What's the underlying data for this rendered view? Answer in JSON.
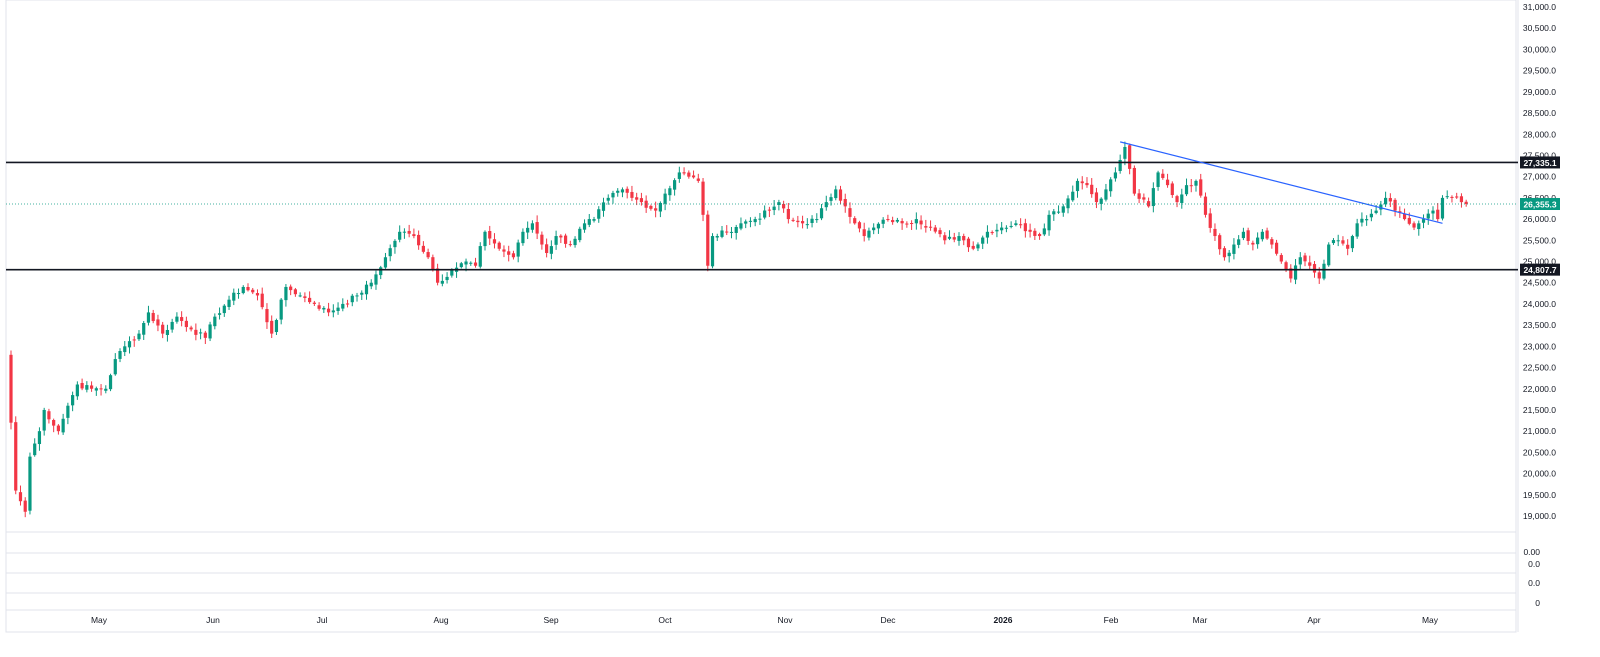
{
  "chart_data": {
    "type": "candlestick",
    "price_axis": {
      "ylim": [
        18500,
        31000
      ],
      "ticks": [
        31000,
        30500,
        30000,
        29500,
        29000,
        28500,
        28000,
        27500,
        27000,
        26500,
        26000,
        25500,
        25000,
        24500,
        24000,
        23500,
        23000,
        22500,
        22000,
        21500,
        21000,
        20500,
        20000,
        19500,
        19000
      ],
      "tick_labels": [
        "31,000.0",
        "30,500.0",
        "30,000.0",
        "29,500.0",
        "29,000.0",
        "28,500.0",
        "28,000.0",
        "27,500.0",
        "27,000.0",
        "26,500.0",
        "26,000.0",
        "25,500.0",
        "25,000.0",
        "24,500.0",
        "24,000.0",
        "23,500.0",
        "23,000.0",
        "22,500.0",
        "22,000.0",
        "21,500.0",
        "21,000.0",
        "20,500.0",
        "20,000.0",
        "19,500.0",
        "19,000.0"
      ]
    },
    "time_axis": {
      "labels": [
        "May",
        "Jun",
        "Jul",
        "Aug",
        "Sep",
        "Oct",
        "Nov",
        "Dec",
        "2026",
        "Feb",
        "Mar",
        "Apr",
        "May"
      ],
      "bold": [
        false,
        false,
        false,
        false,
        false,
        false,
        false,
        false,
        true,
        false,
        false,
        false,
        false
      ]
    },
    "horizontal_lines": [
      {
        "price": 27335.1,
        "label": "27,335.1",
        "color": "#131722"
      },
      {
        "price": 24807.7,
        "label": "24,807.7",
        "color": "#131722"
      }
    ],
    "trendline": {
      "from": {
        "i": 234,
        "price": 27820
      },
      "to": {
        "i": 302,
        "price": 25900
      },
      "color": "#2962ff"
    },
    "last_price": {
      "price": 26355.3,
      "label": "26,355.3",
      "color": "#089981"
    },
    "colors": {
      "up": "#089981",
      "down": "#f23645"
    },
    "sub_panes": [
      {
        "labels": [
          "0.00"
        ]
      },
      {
        "labels": [
          "0.0"
        ]
      },
      {
        "labels": [
          "0.0"
        ]
      },
      {
        "labels": [
          "0"
        ]
      }
    ],
    "anchors": [
      {
        "i": 0,
        "c": 21200
      },
      {
        "i": 1,
        "c": 19600
      },
      {
        "i": 3,
        "c": 19100
      },
      {
        "i": 4,
        "c": 20400
      },
      {
        "i": 6,
        "c": 21000
      },
      {
        "i": 7,
        "c": 21500
      },
      {
        "i": 10,
        "c": 21000
      },
      {
        "i": 12,
        "c": 21600
      },
      {
        "i": 14,
        "c": 22100
      },
      {
        "i": 17,
        "c": 22000
      },
      {
        "i": 20,
        "c": 22000
      },
      {
        "i": 22,
        "c": 22700
      },
      {
        "i": 24,
        "c": 23000
      },
      {
        "i": 27,
        "c": 23300
      },
      {
        "i": 29,
        "c": 23800
      },
      {
        "i": 32,
        "c": 23300
      },
      {
        "i": 35,
        "c": 23700
      },
      {
        "i": 38,
        "c": 23400
      },
      {
        "i": 41,
        "c": 23200
      },
      {
        "i": 43,
        "c": 23700
      },
      {
        "i": 46,
        "c": 24100
      },
      {
        "i": 49,
        "c": 24400
      },
      {
        "i": 52,
        "c": 24200
      },
      {
        "i": 55,
        "c": 23300
      },
      {
        "i": 58,
        "c": 24400
      },
      {
        "i": 61,
        "c": 24200
      },
      {
        "i": 64,
        "c": 24000
      },
      {
        "i": 67,
        "c": 23800
      },
      {
        "i": 70,
        "c": 24000
      },
      {
        "i": 73,
        "c": 24200
      },
      {
        "i": 76,
        "c": 24500
      },
      {
        "i": 79,
        "c": 25100
      },
      {
        "i": 82,
        "c": 25700
      },
      {
        "i": 85,
        "c": 25600
      },
      {
        "i": 88,
        "c": 25100
      },
      {
        "i": 90,
        "c": 24500
      },
      {
        "i": 93,
        "c": 24800
      },
      {
        "i": 96,
        "c": 25000
      },
      {
        "i": 98,
        "c": 24900
      },
      {
        "i": 100,
        "c": 25700
      },
      {
        "i": 103,
        "c": 25300
      },
      {
        "i": 106,
        "c": 25100
      },
      {
        "i": 108,
        "c": 25700
      },
      {
        "i": 110,
        "c": 25900
      },
      {
        "i": 113,
        "c": 25200
      },
      {
        "i": 115,
        "c": 25600
      },
      {
        "i": 118,
        "c": 25400
      },
      {
        "i": 121,
        "c": 25900
      },
      {
        "i": 123,
        "c": 26000
      },
      {
        "i": 126,
        "c": 26500
      },
      {
        "i": 129,
        "c": 26700
      },
      {
        "i": 131,
        "c": 26500
      },
      {
        "i": 133,
        "c": 26400
      },
      {
        "i": 136,
        "c": 26200
      },
      {
        "i": 138,
        "c": 26600
      },
      {
        "i": 141,
        "c": 27100
      },
      {
        "i": 143,
        "c": 27000
      },
      {
        "i": 145,
        "c": 26900
      },
      {
        "i": 146,
        "c": 26100
      },
      {
        "i": 147,
        "c": 24900
      },
      {
        "i": 148,
        "c": 25600
      },
      {
        "i": 151,
        "c": 25700
      },
      {
        "i": 154,
        "c": 25900
      },
      {
        "i": 157,
        "c": 26000
      },
      {
        "i": 160,
        "c": 26200
      },
      {
        "i": 162,
        "c": 26400
      },
      {
        "i": 164,
        "c": 26000
      },
      {
        "i": 167,
        "c": 25900
      },
      {
        "i": 170,
        "c": 26000
      },
      {
        "i": 172,
        "c": 26400
      },
      {
        "i": 174,
        "c": 26700
      },
      {
        "i": 176,
        "c": 26300
      },
      {
        "i": 178,
        "c": 25900
      },
      {
        "i": 180,
        "c": 25600
      },
      {
        "i": 182,
        "c": 25800
      },
      {
        "i": 185,
        "c": 26000
      },
      {
        "i": 188,
        "c": 25900
      },
      {
        "i": 191,
        "c": 26000
      },
      {
        "i": 194,
        "c": 25800
      },
      {
        "i": 197,
        "c": 25500
      },
      {
        "i": 200,
        "c": 25600
      },
      {
        "i": 203,
        "c": 25300
      },
      {
        "i": 206,
        "c": 25700
      },
      {
        "i": 209,
        "c": 25800
      },
      {
        "i": 212,
        "c": 25900
      },
      {
        "i": 215,
        "c": 25700
      },
      {
        "i": 217,
        "c": 25600
      },
      {
        "i": 219,
        "c": 26100
      },
      {
        "i": 222,
        "c": 26300
      },
      {
        "i": 225,
        "c": 26900
      },
      {
        "i": 227,
        "c": 26800
      },
      {
        "i": 229,
        "c": 26400
      },
      {
        "i": 231,
        "c": 26700
      },
      {
        "i": 233,
        "c": 27100
      },
      {
        "i": 235,
        "c": 27700
      },
      {
        "i": 237,
        "c": 26600
      },
      {
        "i": 240,
        "c": 26300
      },
      {
        "i": 242,
        "c": 27100
      },
      {
        "i": 244,
        "c": 26800
      },
      {
        "i": 246,
        "c": 26400
      },
      {
        "i": 248,
        "c": 26800
      },
      {
        "i": 250,
        "c": 26900
      },
      {
        "i": 252,
        "c": 26100
      },
      {
        "i": 254,
        "c": 25600
      },
      {
        "i": 256,
        "c": 25100
      },
      {
        "i": 258,
        "c": 25400
      },
      {
        "i": 260,
        "c": 25700
      },
      {
        "i": 262,
        "c": 25400
      },
      {
        "i": 264,
        "c": 25700
      },
      {
        "i": 266,
        "c": 25400
      },
      {
        "i": 268,
        "c": 25000
      },
      {
        "i": 270,
        "c": 24600
      },
      {
        "i": 272,
        "c": 25100
      },
      {
        "i": 274,
        "c": 24900
      },
      {
        "i": 276,
        "c": 24600
      },
      {
        "i": 278,
        "c": 25400
      },
      {
        "i": 280,
        "c": 25500
      },
      {
        "i": 282,
        "c": 25300
      },
      {
        "i": 284,
        "c": 25900
      },
      {
        "i": 286,
        "c": 26000
      },
      {
        "i": 288,
        "c": 26200
      },
      {
        "i": 290,
        "c": 26500
      },
      {
        "i": 292,
        "c": 26200
      },
      {
        "i": 294,
        "c": 26000
      },
      {
        "i": 296,
        "c": 25800
      },
      {
        "i": 298,
        "c": 26000
      },
      {
        "i": 300,
        "c": 26200
      },
      {
        "i": 301,
        "c": 26000
      },
      {
        "i": 302,
        "c": 26500
      },
      {
        "i": 304,
        "c": 26500
      },
      {
        "i": 306,
        "c": 26400
      },
      {
        "i": 307,
        "c": 26355.3
      }
    ]
  }
}
